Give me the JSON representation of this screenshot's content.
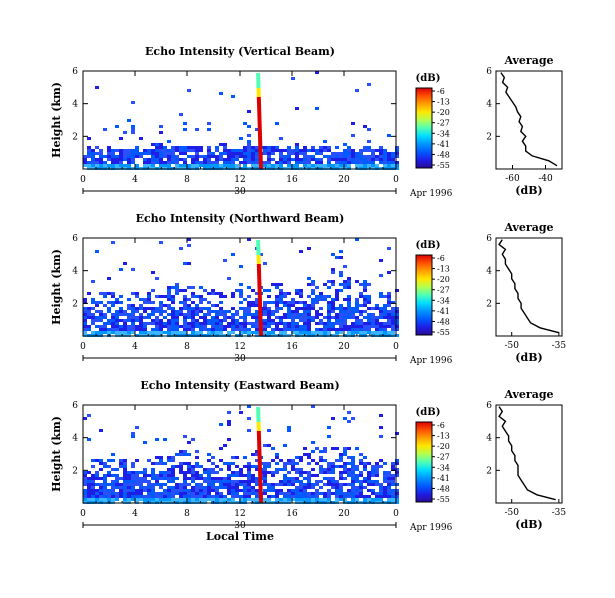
{
  "chart_data": [
    {
      "type": "heatmap",
      "title": "Echo Intensity (Vertical Beam)",
      "ylabel": "Height (km)",
      "xlabel": "",
      "x_ticks": [
        "0",
        "4",
        "8",
        "12",
        "16",
        "20",
        "0"
      ],
      "y_ticks": [
        "2",
        "4",
        "6"
      ],
      "date_label": "30",
      "date_suffix": "Apr 1996",
      "xlim_hours": [
        0,
        24
      ],
      "ylim_km": [
        0,
        6
      ],
      "colorbar": {
        "unit": "(dB)",
        "ticks": [
          "-6",
          "-13",
          "-20",
          "-27",
          "-34",
          "-41",
          "-48",
          "-55"
        ],
        "colors": [
          "#dc0000",
          "#ff5000",
          "#ffa000",
          "#ffe600",
          "#b4ff50",
          "#50ffb4",
          "#00dcff",
          "#0096ff",
          "#005aff",
          "#1e1ee6",
          "#280a96"
        ]
      },
      "profile": {
        "title": "Average",
        "xlabel": "(dB)",
        "x_ticks": [
          "-60",
          "-40"
        ],
        "x_tick_values": [
          -60,
          -40
        ],
        "xlim": [
          -70,
          -30
        ],
        "y_ticks": [
          "2",
          "4",
          "6"
        ],
        "ylim": [
          0,
          6
        ],
        "heights": [
          0.2,
          0.5,
          0.8,
          1.1,
          1.4,
          1.7,
          2.0,
          2.3,
          2.6,
          2.9,
          3.2,
          3.5,
          3.8,
          4.1,
          4.4,
          4.7,
          5.0,
          5.3,
          5.6,
          5.9
        ],
        "values": [
          -33,
          -38,
          -48,
          -52,
          -52,
          -54,
          -52,
          -55,
          -54,
          -56,
          -55,
          -57,
          -58,
          -60,
          -62,
          -64,
          -63,
          -66,
          -65,
          -67
        ]
      }
    },
    {
      "type": "heatmap",
      "title": "Echo Intensity (Northward Beam)",
      "ylabel": "Height (km)",
      "xlabel": "",
      "x_ticks": [
        "0",
        "4",
        "8",
        "12",
        "16",
        "20",
        "0"
      ],
      "y_ticks": [
        "2",
        "4",
        "6"
      ],
      "date_label": "30",
      "date_suffix": "Apr 1996",
      "xlim_hours": [
        0,
        24
      ],
      "ylim_km": [
        0,
        6
      ],
      "colorbar": {
        "unit": "(dB)",
        "ticks": [
          "-6",
          "-13",
          "-20",
          "-27",
          "-34",
          "-41",
          "-48",
          "-55"
        ],
        "colors": [
          "#dc0000",
          "#ff5000",
          "#ffa000",
          "#ffe600",
          "#b4ff50",
          "#50ffb4",
          "#00dcff",
          "#0096ff",
          "#005aff",
          "#1e1ee6",
          "#280a96"
        ]
      },
      "profile": {
        "title": "Average",
        "xlabel": "(dB)",
        "x_ticks": [
          "-50",
          "-35"
        ],
        "x_tick_values": [
          -50,
          -35
        ],
        "xlim": [
          -55,
          -34
        ],
        "y_ticks": [
          "2",
          "4",
          "6"
        ],
        "ylim": [
          0,
          6
        ],
        "heights": [
          0.2,
          0.5,
          0.8,
          1.1,
          1.4,
          1.7,
          2.0,
          2.3,
          2.6,
          2.9,
          3.2,
          3.5,
          3.8,
          4.1,
          4.4,
          4.7,
          5.0,
          5.3,
          5.6,
          5.9
        ],
        "values": [
          -35,
          -41,
          -44,
          -45,
          -46,
          -47,
          -47,
          -48,
          -48,
          -49,
          -49,
          -50,
          -50,
          -51,
          -52,
          -52,
          -53,
          -52,
          -54,
          -53
        ]
      }
    },
    {
      "type": "heatmap",
      "title": "Echo Intensity (Eastward Beam)",
      "ylabel": "Height (km)",
      "xlabel": "Local Time",
      "x_ticks": [
        "0",
        "4",
        "8",
        "12",
        "16",
        "20",
        "0"
      ],
      "y_ticks": [
        "2",
        "4",
        "6"
      ],
      "date_label": "30",
      "date_suffix": "Apr 1996",
      "xlim_hours": [
        0,
        24
      ],
      "ylim_km": [
        0,
        6
      ],
      "colorbar": {
        "unit": "(dB)",
        "ticks": [
          "-6",
          "-13",
          "-20",
          "-27",
          "-34",
          "-41",
          "-48",
          "-55"
        ],
        "colors": [
          "#dc0000",
          "#ff5000",
          "#ffa000",
          "#ffe600",
          "#b4ff50",
          "#50ffb4",
          "#00dcff",
          "#0096ff",
          "#005aff",
          "#1e1ee6",
          "#280a96"
        ]
      },
      "profile": {
        "title": "Average",
        "xlabel": "(dB)",
        "x_ticks": [
          "-50",
          "-35"
        ],
        "x_tick_values": [
          -50,
          -35
        ],
        "xlim": [
          -55,
          -34
        ],
        "y_ticks": [
          "2",
          "4",
          "6"
        ],
        "ylim": [
          0,
          6
        ],
        "heights": [
          0.2,
          0.5,
          0.8,
          1.1,
          1.4,
          1.7,
          2.0,
          2.3,
          2.6,
          2.9,
          3.2,
          3.5,
          3.8,
          4.1,
          4.4,
          4.7,
          5.0,
          5.3,
          5.6,
          5.9
        ],
        "values": [
          -36,
          -42,
          -45,
          -46,
          -47,
          -48,
          -48,
          -48,
          -49,
          -49,
          -50,
          -50,
          -51,
          -51,
          -52,
          -53,
          -52,
          -54,
          -53,
          -54
        ]
      }
    }
  ]
}
